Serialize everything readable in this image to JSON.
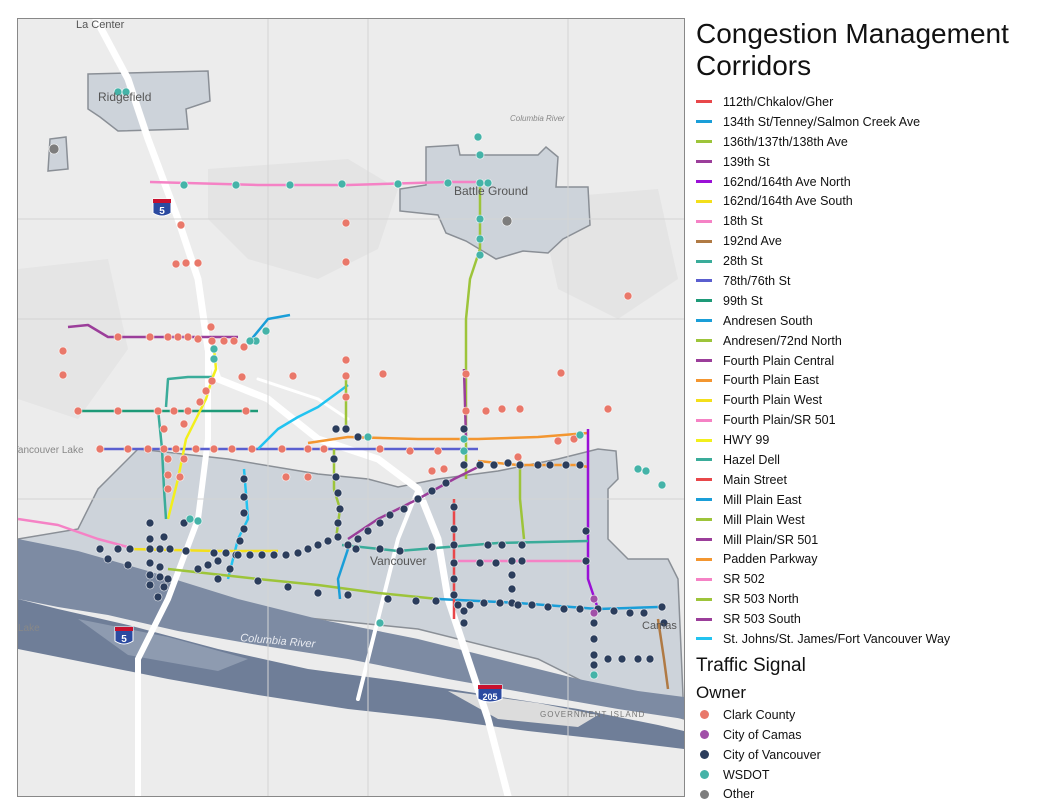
{
  "legend": {
    "title": "Congestion Management Corridors",
    "corridors": [
      {
        "label": "112th/Chkalov/Gher",
        "color": "#e8474a"
      },
      {
        "label": "134th St/Tenney/Salmon Creek Ave",
        "color": "#1a9ed8"
      },
      {
        "label": "136th/137th/138th Ave",
        "color": "#9dc43a"
      },
      {
        "label": "139th St",
        "color": "#9b3e9a"
      },
      {
        "label": "162nd/164th Ave North",
        "color": "#9a10d6"
      },
      {
        "label": "162nd/164th Ave South",
        "color": "#f3df1b"
      },
      {
        "label": "18th St",
        "color": "#f582c5"
      },
      {
        "label": "192nd Ave",
        "color": "#b07a44"
      },
      {
        "label": "28th St",
        "color": "#3aac9a"
      },
      {
        "label": "78th/76th St",
        "color": "#5a5fcf"
      },
      {
        "label": "99th St",
        "color": "#1e9a78"
      },
      {
        "label": "Andresen South",
        "color": "#1a9ed8"
      },
      {
        "label": "Andresen/72nd  North",
        "color": "#9dc43a"
      },
      {
        "label": "Fourth Plain Central",
        "color": "#9b3e9a"
      },
      {
        "label": "Fourth Plain East",
        "color": "#f39630"
      },
      {
        "label": "Fourth Plain West",
        "color": "#f3df1b"
      },
      {
        "label": "Fourth Plain/SR 501",
        "color": "#f582c5"
      },
      {
        "label": "HWY 99",
        "color": "#f2ef1c"
      },
      {
        "label": "Hazel Dell",
        "color": "#3aac9a"
      },
      {
        "label": "Main Street",
        "color": "#e8474a"
      },
      {
        "label": "Mill Plain East",
        "color": "#1a9ed8"
      },
      {
        "label": "Mill Plain West",
        "color": "#9dc43a"
      },
      {
        "label": "Mill Plain/SR 501",
        "color": "#9b3e9a"
      },
      {
        "label": "Padden Parkway",
        "color": "#f39630"
      },
      {
        "label": "SR 502",
        "color": "#f582c5"
      },
      {
        "label": "SR 503 North",
        "color": "#9dc43a"
      },
      {
        "label": "SR 503 South",
        "color": "#9b3e9a"
      },
      {
        "label": "St. Johns/St. James/Fort Vancouver Way",
        "color": "#22c3f0"
      }
    ],
    "signal_title": "Traffic Signal",
    "owner_title": "Owner",
    "owners": [
      {
        "label": "Clark County",
        "color": "#e9786a"
      },
      {
        "label": "City of Camas",
        "color": "#a150a8"
      },
      {
        "label": "City of Vancouver",
        "color": "#2b3d5c"
      },
      {
        "label": "WSDOT",
        "color": "#45b3a8"
      },
      {
        "label": "Other",
        "color": "#7d7d7d"
      }
    ]
  },
  "map": {
    "places": {
      "la_center": "La Center",
      "ridgefield": "Ridgefield",
      "battle_ground": "Battle Ground",
      "vancouver": "Vancouver",
      "camas": "Camas",
      "vancouver_lake": "Vancouver Lake",
      "lake": "Lake",
      "columbia_river": "Columbia River",
      "columbia_river_top": "Columbia River",
      "government_island": "GOVERNMENT ISLAND"
    },
    "shields": {
      "i5_north": "5",
      "i5_south": "5",
      "i205": "205"
    }
  }
}
